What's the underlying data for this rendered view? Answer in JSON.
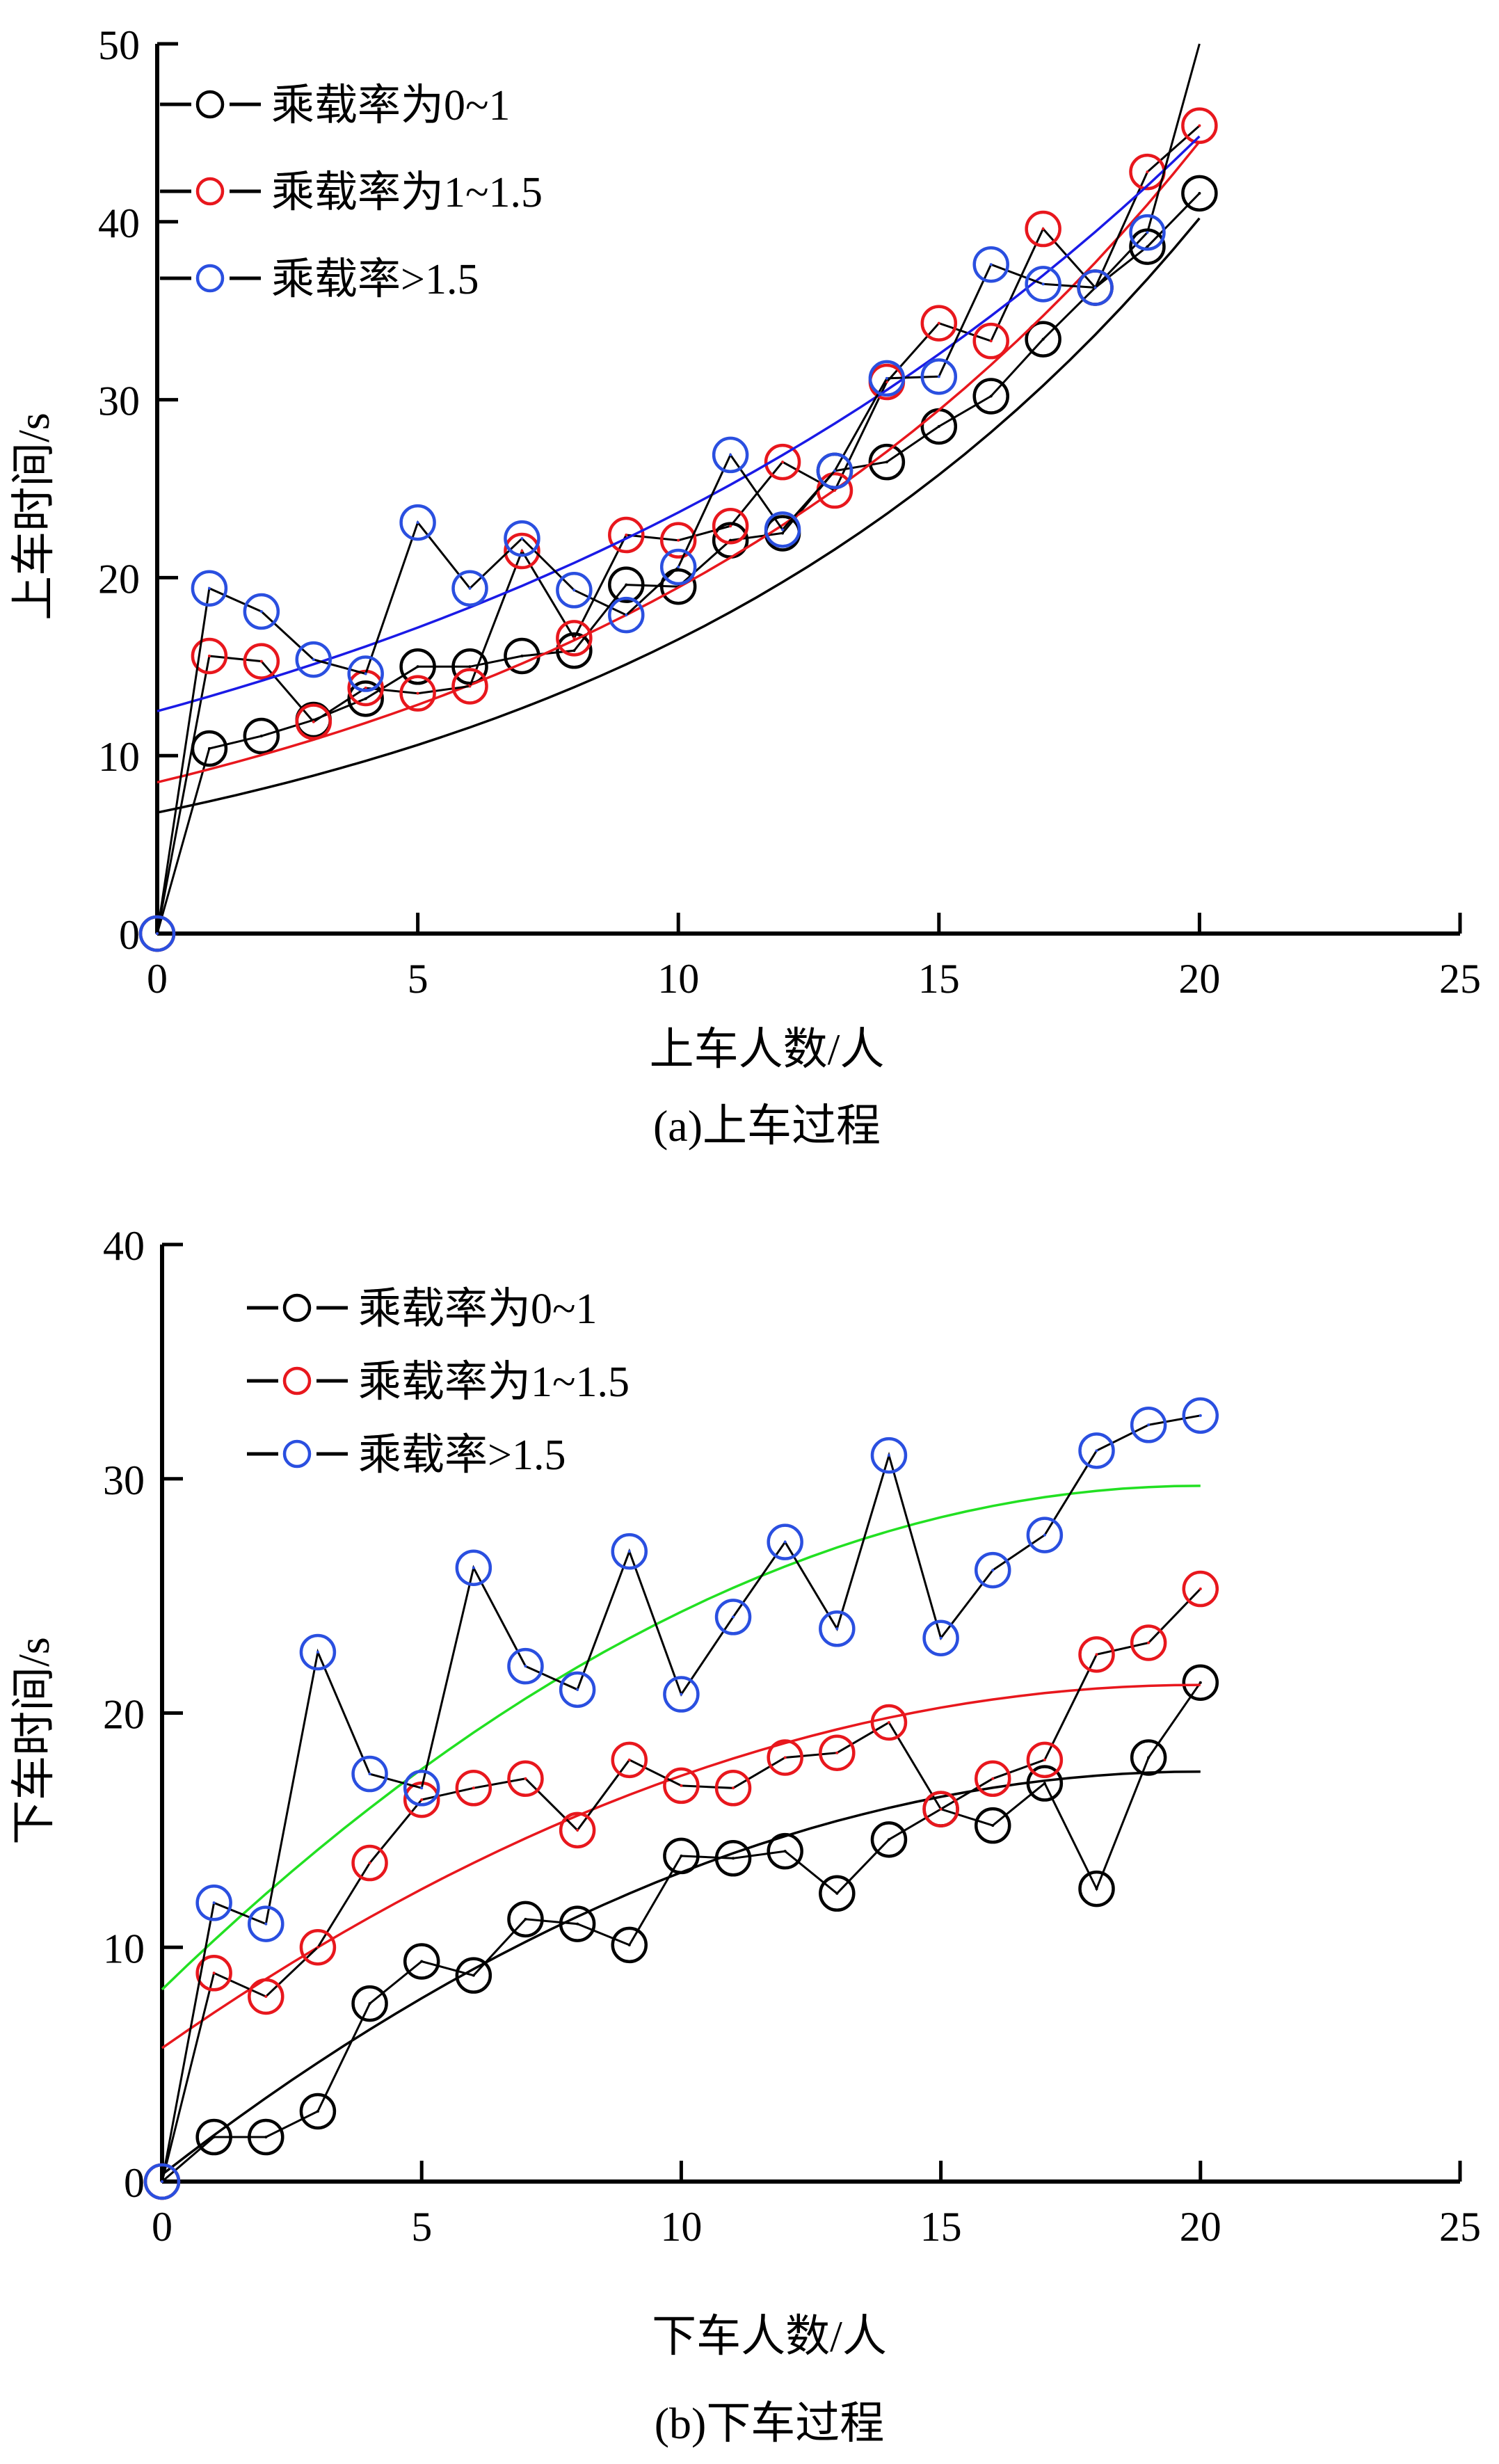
{
  "chart_data": [
    {
      "type": "line",
      "caption": "(a)上车过程",
      "xlabel": "上车人数/人",
      "ylabel": "上车时间/s",
      "xlim": [
        0,
        25
      ],
      "ylim": [
        0,
        50
      ],
      "xticks": [
        "0",
        "5",
        "10",
        "15",
        "20",
        "25"
      ],
      "yticks": [
        "0",
        "10",
        "20",
        "30",
        "40",
        "50"
      ],
      "legend_position": "top-left",
      "x": [
        0,
        1,
        2,
        3,
        4,
        5,
        6,
        7,
        8,
        9,
        10,
        11,
        12,
        13,
        14,
        15,
        16,
        17,
        18,
        19,
        20
      ],
      "series": [
        {
          "name": "乘载率为0~1",
          "color": "#000000",
          "values": [
            0,
            10.4,
            11.1,
            12.0,
            13.2,
            15.0,
            15.0,
            15.6,
            15.9,
            19.6,
            19.5,
            22.1,
            22.5,
            26.0,
            26.5,
            28.5,
            30.2,
            33.4,
            36.3,
            38.6,
            41.6
          ],
          "fit": [
            6.8,
            40.2
          ],
          "fit_type": "exponential",
          "fit_color": "#000000"
        },
        {
          "name": "乘载率为1~1.5",
          "color": "#e8171d",
          "values": [
            0,
            15.6,
            15.3,
            11.9,
            13.8,
            13.5,
            13.9,
            21.5,
            16.6,
            22.4,
            22.1,
            22.9,
            26.5,
            24.9,
            31.0,
            34.3,
            33.3,
            39.6,
            36.3,
            42.8,
            45.4
          ],
          "fit": [
            8.5,
            44.5
          ],
          "fit_type": "exponential",
          "fit_color": "#e8171d"
        },
        {
          "name": "乘载率>1.5",
          "color": "#2a4fe0",
          "values": [
            0,
            19.4,
            18.1,
            15.4,
            14.6,
            23.1,
            19.4,
            22.2,
            19.3,
            17.9,
            20.6,
            26.9,
            22.7,
            26.0,
            31.2,
            31.3,
            37.6,
            36.5,
            36.3,
            39.4,
            50.0
          ],
          "fit": [
            12.5,
            44.8
          ],
          "fit_type": "exponential",
          "fit_color": "#1a1ae6"
        }
      ]
    },
    {
      "type": "line",
      "caption": "(b)下车过程",
      "xlabel": "下车人数/人",
      "ylabel": "下车时间/s",
      "xlim": [
        0,
        25
      ],
      "ylim": [
        0,
        40
      ],
      "xticks": [
        "0",
        "5",
        "10",
        "15",
        "20",
        "25"
      ],
      "yticks": [
        "0",
        "10",
        "20",
        "30",
        "40"
      ],
      "legend_position": "top-left",
      "x": [
        0,
        1,
        2,
        3,
        4,
        5,
        6,
        7,
        8,
        9,
        10,
        11,
        12,
        13,
        14,
        15,
        16,
        17,
        18,
        19,
        20
      ],
      "series": [
        {
          "name": "乘载率为0~1",
          "color": "#000000",
          "values": [
            0,
            1.9,
            1.9,
            3.0,
            7.6,
            9.4,
            8.8,
            11.2,
            11.0,
            10.1,
            13.9,
            13.8,
            14.1,
            12.3,
            14.6,
            15.9,
            15.2,
            17.0,
            12.5,
            18.1,
            21.3
          ],
          "fit": [
            0.3,
            17.5
          ],
          "fit_type": "saturating",
          "fit_color": "#000000"
        },
        {
          "name": "乘载率为1~1.5",
          "color": "#e8171d",
          "values": [
            0,
            8.9,
            7.9,
            10.0,
            13.6,
            16.3,
            16.8,
            17.2,
            15.0,
            18.0,
            16.9,
            16.8,
            18.1,
            18.3,
            19.6,
            15.9,
            17.2,
            18.0,
            22.5,
            23.0,
            25.3
          ],
          "fit": [
            5.7,
            21.2
          ],
          "fit_type": "saturating",
          "fit_color": "#e8171d"
        },
        {
          "name": "乘载率>1.5",
          "color": "#2a4fe0",
          "values": [
            0,
            11.9,
            11.0,
            22.6,
            17.4,
            16.8,
            26.2,
            22.0,
            21.0,
            26.9,
            20.8,
            24.1,
            27.3,
            23.6,
            31.0,
            23.2,
            26.1,
            27.6,
            31.2,
            32.3,
            32.7
          ],
          "fit": [
            8.2,
            29.7
          ],
          "fit_type": "saturating",
          "fit_color": "#22e022"
        }
      ]
    }
  ]
}
